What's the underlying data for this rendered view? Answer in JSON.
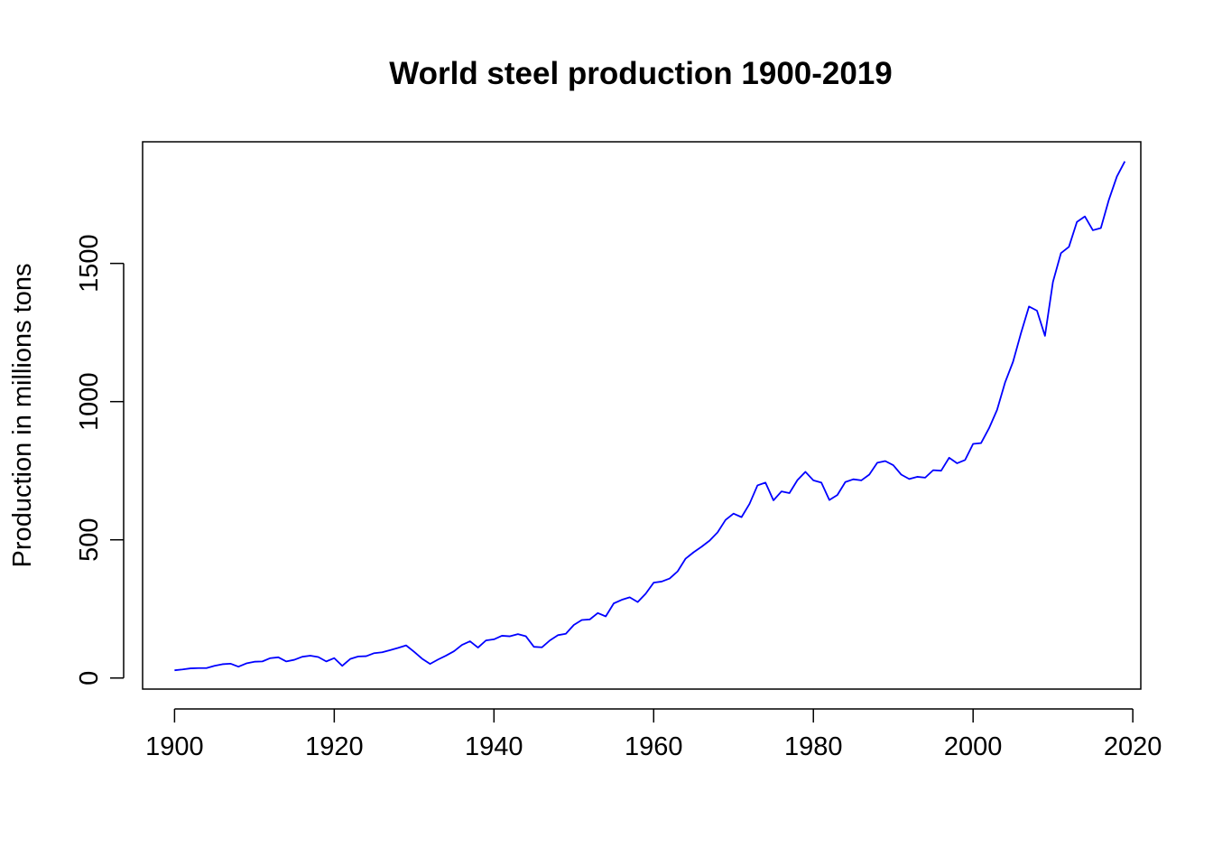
{
  "chart_data": {
    "type": "line",
    "title": "World steel production 1900-2019",
    "xlabel": "",
    "ylabel": "Production in millions tons",
    "xlim": [
      1896,
      2021
    ],
    "ylim": [
      -40,
      1940
    ],
    "x_ticks": [
      1900,
      1920,
      1940,
      1960,
      1980,
      2000,
      2020
    ],
    "y_ticks": [
      0,
      500,
      1000,
      1500
    ],
    "grid": false,
    "legend": "none",
    "series": [
      {
        "color": "#0000ff",
        "x": [
          1900,
          1901,
          1902,
          1903,
          1904,
          1905,
          1906,
          1907,
          1908,
          1909,
          1910,
          1911,
          1912,
          1913,
          1914,
          1915,
          1916,
          1917,
          1918,
          1919,
          1920,
          1921,
          1922,
          1923,
          1924,
          1925,
          1926,
          1927,
          1928,
          1929,
          1930,
          1931,
          1932,
          1933,
          1934,
          1935,
          1936,
          1937,
          1938,
          1939,
          1940,
          1941,
          1942,
          1943,
          1944,
          1945,
          1946,
          1947,
          1948,
          1949,
          1950,
          1951,
          1952,
          1953,
          1954,
          1955,
          1956,
          1957,
          1958,
          1959,
          1960,
          1961,
          1962,
          1963,
          1964,
          1965,
          1966,
          1967,
          1968,
          1969,
          1970,
          1971,
          1972,
          1973,
          1974,
          1975,
          1976,
          1977,
          1978,
          1979,
          1980,
          1981,
          1982,
          1983,
          1984,
          1985,
          1986,
          1987,
          1988,
          1989,
          1990,
          1991,
          1992,
          1993,
          1994,
          1995,
          1996,
          1997,
          1998,
          1999,
          2000,
          2001,
          2002,
          2003,
          2004,
          2005,
          2006,
          2007,
          2008,
          2009,
          2010,
          2011,
          2012,
          2013,
          2014,
          2015,
          2016,
          2017,
          2018,
          2019
        ],
        "y": [
          28,
          31,
          35,
          36,
          36,
          44,
          50,
          52,
          41,
          53,
          59,
          60,
          72,
          75,
          60,
          66,
          77,
          81,
          76,
          60,
          72,
          44,
          69,
          78,
          79,
          90,
          93,
          101,
          109,
          118,
          95,
          70,
          51,
          67,
          81,
          97,
          120,
          133,
          110,
          136,
          140,
          153,
          151,
          159,
          151,
          113,
          111,
          136,
          155,
          160,
          192,
          210,
          212,
          235,
          223,
          270,
          283,
          292,
          275,
          305,
          345,
          349,
          360,
          386,
          432,
          455,
          475,
          497,
          527,
          572,
          595,
          582,
          630,
          697,
          707,
          643,
          675,
          669,
          716,
          746,
          715,
          707,
          644,
          662,
          709,
          719,
          715,
          736,
          779,
          785,
          770,
          736,
          720,
          728,
          725,
          752,
          750,
          797,
          777,
          789,
          847,
          850,
          904,
          970,
          1069,
          1144,
          1248,
          1344,
          1329,
          1238,
          1433,
          1537,
          1560,
          1650,
          1670,
          1620,
          1628,
          1730,
          1814,
          1869
        ]
      }
    ]
  }
}
